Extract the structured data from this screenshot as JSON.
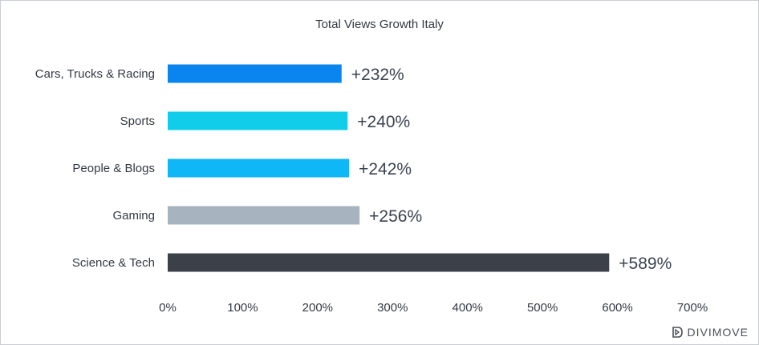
{
  "chart_data": {
    "type": "bar",
    "orientation": "horizontal",
    "title": "Total Views Growth Italy",
    "categories": [
      "Cars, Trucks & Racing",
      "Sports",
      "People & Blogs",
      "Gaming",
      "Science & Tech"
    ],
    "values": [
      232,
      240,
      242,
      256,
      589
    ],
    "value_labels": [
      "+232%",
      "+240%",
      "+242%",
      "+256%",
      "+589%"
    ],
    "colors": [
      "#0a84ee",
      "#12cdea",
      "#10b7f6",
      "#a7b3bf",
      "#3c4049"
    ],
    "xlim": [
      0,
      700
    ],
    "xticks": [
      0,
      100,
      200,
      300,
      400,
      500,
      600,
      700
    ],
    "xtick_labels": [
      "0%",
      "100%",
      "200%",
      "300%",
      "400%",
      "500%",
      "600%",
      "700%"
    ],
    "grid": false,
    "legend": "none"
  },
  "brand": {
    "name": "DIVIMOVE",
    "icon": "divimove-logo-icon"
  }
}
